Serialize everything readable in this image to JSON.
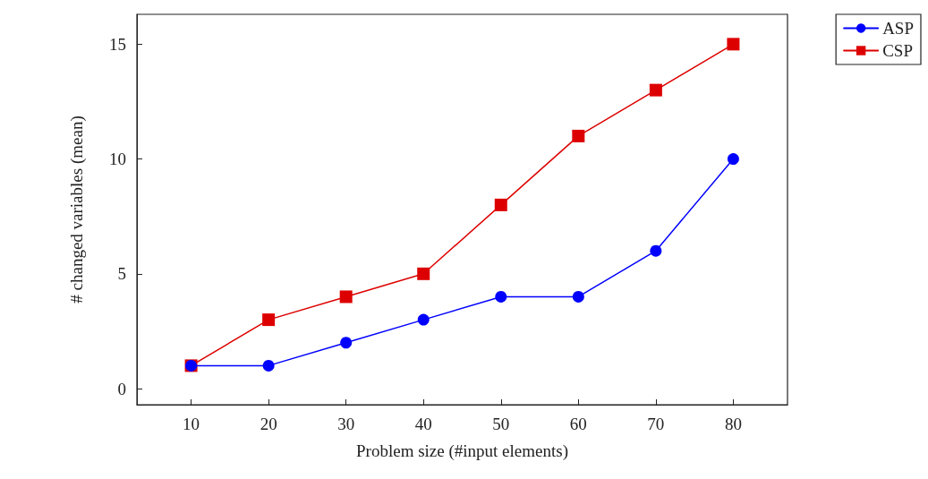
{
  "chart_data": {
    "type": "line",
    "xlabel": "Problem size (#input elements)",
    "ylabel": "# changed variables (mean)",
    "x": [
      10,
      20,
      30,
      40,
      50,
      60,
      70,
      80
    ],
    "series": [
      {
        "name": "ASP",
        "color": "#0000ff",
        "marker": "circle",
        "values": [
          1,
          1,
          2,
          3,
          4,
          4,
          6,
          10
        ]
      },
      {
        "name": "CSP",
        "color": "#dd0000",
        "marker": "square",
        "values": [
          1,
          3,
          4,
          5,
          8,
          11,
          13,
          15
        ]
      }
    ],
    "xlim": [
      3,
      87
    ],
    "xticks": [
      10,
      20,
      30,
      40,
      50,
      60,
      70,
      80
    ],
    "ylim": [
      -0.7,
      16.3
    ],
    "yticks": [
      0,
      5,
      10,
      15
    ],
    "grid": false,
    "legend": "top right",
    "line_style": "solid"
  }
}
